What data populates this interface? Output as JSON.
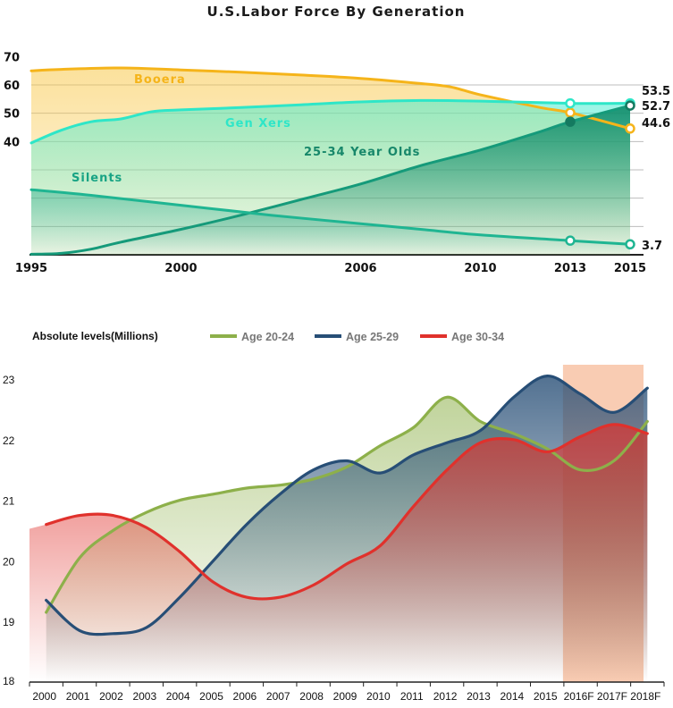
{
  "chart_data": [
    {
      "type": "area",
      "title": "U.S.Labor Force By Generation",
      "xlabel": "",
      "ylabel": "",
      "x_ticks": [
        "1995",
        "2000",
        "2006",
        "2010",
        "2013",
        "2015"
      ],
      "y_ticks": [
        "70",
        "60",
        "50",
        "40"
      ],
      "ylim": [
        0,
        72
      ],
      "grid": true,
      "series": [
        {
          "name": "Booera",
          "color": "#f5b41a",
          "points": [
            [
              1995,
              65
            ],
            [
              1996,
              65.5
            ],
            [
              1998,
              66
            ],
            [
              2000,
              65.3
            ],
            [
              2002,
              64.5
            ],
            [
              2004,
              63.5
            ],
            [
              2006,
              62.3
            ],
            [
              2008,
              60.5
            ],
            [
              2009,
              59.3
            ],
            [
              2010,
              56.5
            ],
            [
              2012,
              52
            ],
            [
              2013,
              50.2
            ],
            [
              2015,
              44.6
            ]
          ],
          "end_label": "44.6"
        },
        {
          "name": "Gen Xers",
          "color": "#2ee6c8",
          "points": [
            [
              1995,
              39.5
            ],
            [
              1996,
              44
            ],
            [
              1997,
              47
            ],
            [
              1998,
              48
            ],
            [
              1999,
              50.5
            ],
            [
              2000,
              51.2
            ],
            [
              2002,
              52
            ],
            [
              2004,
              53
            ],
            [
              2006,
              54
            ],
            [
              2008,
              54.5
            ],
            [
              2010,
              54.3
            ],
            [
              2013,
              53.5
            ],
            [
              2015,
              53.5
            ]
          ],
          "end_label": "53.5"
        },
        {
          "name": "25-34 Year Olds",
          "color": "#159a7a",
          "points": [
            [
              1995,
              0.2
            ],
            [
              1996,
              0.5
            ],
            [
              1997,
              2
            ],
            [
              1998,
              4.5
            ],
            [
              2000,
              9
            ],
            [
              2002,
              14
            ],
            [
              2004,
              19.5
            ],
            [
              2006,
              25
            ],
            [
              2008,
              31.5
            ],
            [
              2010,
              37
            ],
            [
              2012,
              43.5
            ],
            [
              2013,
              47
            ],
            [
              2015,
              52.7
            ]
          ],
          "end_label": "52.7"
        },
        {
          "name": "Silents",
          "color": "#1fb592",
          "points": [
            [
              1995,
              23
            ],
            [
              1997,
              21
            ],
            [
              2000,
              17.5
            ],
            [
              2003,
              14
            ],
            [
              2006,
              11
            ],
            [
              2008,
              9
            ],
            [
              2010,
              7
            ],
            [
              2013,
              5
            ],
            [
              2015,
              3.7
            ]
          ],
          "end_label": "3.7"
        }
      ]
    },
    {
      "type": "line",
      "title": "",
      "ylabel": "Absolute levels(Millions)",
      "categories": [
        "2000",
        "2001",
        "2002",
        "2003",
        "2004",
        "2005",
        "2006",
        "2007",
        "2008",
        "2009",
        "2010",
        "2011",
        "2012",
        "2013",
        "2014",
        "2015",
        "2016F",
        "2017F",
        "2018F"
      ],
      "y_ticks": [
        "23",
        "22",
        "21",
        "20",
        "19",
        "18"
      ],
      "ylim": [
        18,
        23.5
      ],
      "legend": "top",
      "forecast_highlight": [
        "2016F",
        "2018F"
      ],
      "series": [
        {
          "name": "Age 20-24",
          "color": "#8db04a",
          "values": [
            19.15,
            20.05,
            20.5,
            20.8,
            21.0,
            21.1,
            21.2,
            21.25,
            21.35,
            21.55,
            21.9,
            22.2,
            22.7,
            22.3,
            22.1,
            21.85,
            21.5,
            21.65,
            22.3
          ]
        },
        {
          "name": "Age 25-29",
          "color": "#274e76",
          "values": [
            19.35,
            18.85,
            18.8,
            18.9,
            19.4,
            20.0,
            20.6,
            21.1,
            21.5,
            21.65,
            21.45,
            21.75,
            21.95,
            22.15,
            22.7,
            23.05,
            22.75,
            22.45,
            22.85
          ]
        },
        {
          "name": "Age 30-34",
          "color": "#e0312c",
          "values": [
            20.6,
            20.75,
            20.75,
            20.55,
            20.15,
            19.65,
            19.4,
            19.4,
            19.6,
            19.95,
            20.25,
            20.9,
            21.5,
            21.95,
            22.0,
            21.8,
            22.05,
            22.25,
            22.1
          ]
        }
      ]
    }
  ]
}
